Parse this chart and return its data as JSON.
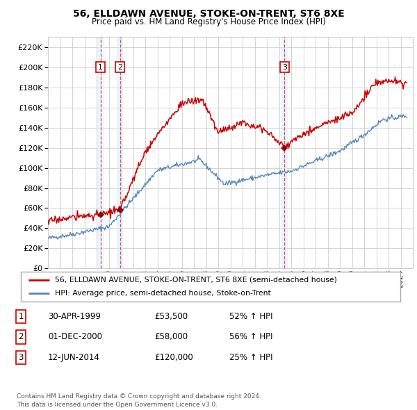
{
  "title": "56, ELLDAWN AVENUE, STOKE-ON-TRENT, ST6 8XE",
  "subtitle": "Price paid vs. HM Land Registry's House Price Index (HPI)",
  "ylim": [
    0,
    230000
  ],
  "yticks": [
    0,
    20000,
    40000,
    60000,
    80000,
    100000,
    120000,
    140000,
    160000,
    180000,
    200000,
    220000
  ],
  "xlim_start": 1995.0,
  "xlim_end": 2025.0,
  "legend_line1": "56, ELLDAWN AVENUE, STOKE-ON-TRENT, ST6 8XE (semi-detached house)",
  "legend_line2": "HPI: Average price, semi-detached house, Stoke-on-Trent",
  "red_color": "#cc0000",
  "blue_color": "#5588bb",
  "marker_color": "#990000",
  "vline_color": "#cc4444",
  "vfill_color": "#ddeeff",
  "sale_points": [
    {
      "date_num": 1999.33,
      "price": 53500,
      "label": "1"
    },
    {
      "date_num": 2000.92,
      "price": 58000,
      "label": "2"
    },
    {
      "date_num": 2014.45,
      "price": 120000,
      "label": "3"
    }
  ],
  "table_rows": [
    {
      "label": "1",
      "date": "30-APR-1999",
      "price": "£53,500",
      "change": "52% ↑ HPI"
    },
    {
      "label": "2",
      "date": "01-DEC-2000",
      "price": "£58,000",
      "change": "56% ↑ HPI"
    },
    {
      "label": "3",
      "date": "12-JUN-2014",
      "price": "£120,000",
      "change": "25% ↑ HPI"
    }
  ],
  "footer": "Contains HM Land Registry data © Crown copyright and database right 2024.\nThis data is licensed under the Open Government Licence v3.0.",
  "background_color": "#ffffff",
  "grid_color": "#cccccc"
}
